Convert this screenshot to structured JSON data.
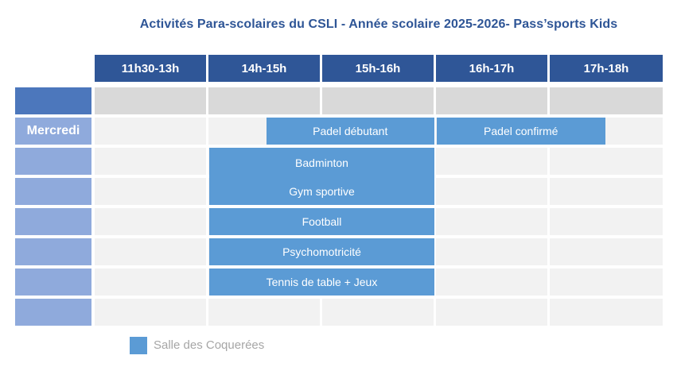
{
  "title": "Activités Para-scolaires du CSLI - Année scolaire 2025-2026- Pass’sports Kids",
  "table": {
    "time_columns": [
      "11h30-13h",
      "14h-15h",
      "15h-16h",
      "16h-17h",
      "17h-18h"
    ],
    "day_rows": [
      {
        "label": "",
        "style": "dark"
      },
      {
        "label": "Mercredi",
        "style": "light"
      },
      {
        "label": "",
        "style": "light"
      },
      {
        "label": "",
        "style": "light"
      },
      {
        "label": "",
        "style": "light"
      },
      {
        "label": "",
        "style": "light"
      },
      {
        "label": "",
        "style": "light"
      },
      {
        "label": "",
        "style": "light"
      }
    ],
    "body_rows": 8,
    "gray_row_index": 0
  },
  "activities": [
    {
      "label": "Padel débutant",
      "row": 1,
      "col_start": 1.5,
      "col_end": 3.0
    },
    {
      "label": "Padel confirmé",
      "row": 1,
      "col_start": 3.0,
      "col_end": 4.5
    },
    {
      "label": "Badminton",
      "row": 2,
      "col_start": 1.0,
      "col_end": 3.0,
      "joined_with_next": true
    },
    {
      "label": "Gym sportive",
      "row": 3,
      "col_start": 1.0,
      "col_end": 3.0
    },
    {
      "label": "Football",
      "row": 4,
      "col_start": 1.0,
      "col_end": 3.0
    },
    {
      "label": "Psychomotricité",
      "row": 5,
      "col_start": 1.0,
      "col_end": 3.0
    },
    {
      "label": "Tennis de table + Jeux",
      "row": 6,
      "col_start": 1.0,
      "col_end": 3.0
    }
  ],
  "legend": {
    "swatch_color": "#5B9BD5",
    "label": "Salle des Coquerées"
  },
  "colors": {
    "title_text": "#2E5596",
    "header_fill": "#2F5697",
    "day_dark_fill": "#4C77BC",
    "day_light_fill": "#8FAADC",
    "gray_row_fill": "#D9D9D9",
    "body_cell_fill": "#F2F2F2",
    "activity_fill": "#5B9BD5",
    "legend_text": "#A6A6A6"
  }
}
